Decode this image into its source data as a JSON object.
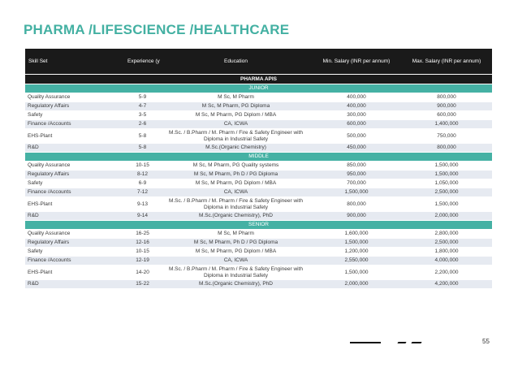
{
  "title": "PHARMA /LIFESCIENCE /HEALTHCARE",
  "page_number": "55",
  "table": {
    "headers": {
      "skill": "Skill Set",
      "experience": "Experience (years)",
      "education": "Education",
      "min_salary": "Min. Salary (INR per annum)",
      "max_salary": "Max. Salary (INR per annum)"
    },
    "section": "PHARMA APIS",
    "levels": [
      "JUNIOR",
      "MIDDLE",
      "SENIOR"
    ],
    "junior": [
      {
        "skill": "Quality Assurance",
        "exp": "5-9",
        "edu": "M Sc, M Pharm",
        "min": "400,000",
        "max": "800,000"
      },
      {
        "skill": "Regulatory Affairs",
        "exp": "4-7",
        "edu": "M Sc, M Pharm, PG Diploma",
        "min": "400,000",
        "max": "900,000"
      },
      {
        "skill": "Safety",
        "exp": "3-5",
        "edu": "M Sc, M Pharm, PG Diplom  /  MBA",
        "min": "300,000",
        "max": "600,000"
      },
      {
        "skill": "Finance /Accounts",
        "exp": "2-6",
        "edu": "CA, ICWA",
        "min": "600,000",
        "max": "1,400,000"
      },
      {
        "skill": "EHS-Plant",
        "exp": "5-8",
        "edu": "M.Sc. / B.Pharm / M. Pharm / Fire & Safety Engineer with Diploma in Industrial Safety",
        "min": "500,000",
        "max": "750,000"
      },
      {
        "skill": "R&D",
        "exp": "5-8",
        "edu": "M.Sc.(Organic Chemistry)",
        "min": "450,000",
        "max": "800,000"
      }
    ],
    "middle": [
      {
        "skill": "Quality Assurance",
        "exp": "10-15",
        "edu": "M Sc, M Pharm, PG Quality systems",
        "min": "850,000",
        "max": "1,500,000"
      },
      {
        "skill": "Regulatory Affairs",
        "exp": "8-12",
        "edu": "M Sc, M Pharm, Ph D  / PG Diploma",
        "min": "950,000",
        "max": "1,500,000"
      },
      {
        "skill": "Safety",
        "exp": "6-9",
        "edu": "M Sc, M Pharm, PG Diplom  /  MBA",
        "min": "700,000",
        "max": "1,050,000"
      },
      {
        "skill": "Finance /Accounts",
        "exp": "7-12",
        "edu": "CA, ICWA",
        "min": "1,500,000",
        "max": "2,500,000"
      },
      {
        "skill": "EHS-Plant",
        "exp": "9-13",
        "edu": "M.Sc. / B.Pharm / M. Pharm / Fire & Safety Engineer with Diploma in Industrial Safety",
        "min": "800,000",
        "max": "1,500,000"
      },
      {
        "skill": "R&D",
        "exp": "9-14",
        "edu": "M.Sc.(Organic Chemistry), PhD",
        "min": "900,000",
        "max": "2,000,000"
      }
    ],
    "senior": [
      {
        "skill": "Quality Assurance",
        "exp": "16-25",
        "edu": "M Sc, M Pharm",
        "min": "1,600,000",
        "max": "2,800,000"
      },
      {
        "skill": "Regulatory Affairs",
        "exp": "12-16",
        "edu": "M Sc, M Pharm, Ph D  / PG Diploma",
        "min": "1,500,000",
        "max": "2,500,000"
      },
      {
        "skill": "Safety",
        "exp": "10-15",
        "edu": "M Sc, M Pharm, PG Diplom  /  MBA",
        "min": "1,200,000",
        "max": "1,800,000"
      },
      {
        "skill": "Finance /Accounts",
        "exp": "12-19",
        "edu": "CA, ICWA",
        "min": "2,550,000",
        "max": "4,000,000"
      },
      {
        "skill": "EHS-Plant",
        "exp": "14-20",
        "edu": "M.Sc. / B.Pharm / M. Pharm / Fire & Safety Engineer with Diploma in Industrial Safety",
        "min": "1,500,000",
        "max": "2,200,000"
      },
      {
        "skill": "R&D",
        "exp": "15-22",
        "edu": "M.Sc.(Organic Chemistry), PhD",
        "min": "2,000,000",
        "max": "4,200,000"
      }
    ]
  },
  "colors": {
    "title": "#43b0a2",
    "header_bg": "#1a1a1a",
    "level_bg": "#45b1a4",
    "alt_row": "#e6eaf1"
  }
}
